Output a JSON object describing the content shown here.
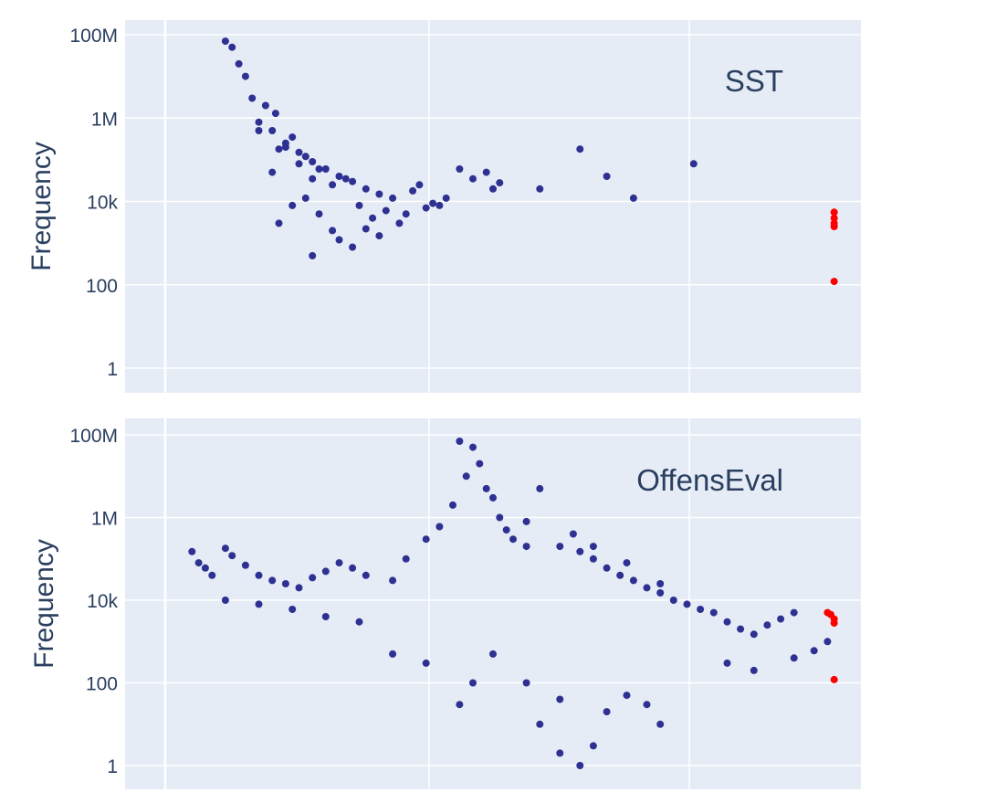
{
  "chart_data": [
    {
      "type": "scatter",
      "title": "",
      "annotation": "SST",
      "xlabel": "",
      "ylabel": "Frequency",
      "y_scale": "log",
      "ylim": [
        0.5,
        150000000
      ],
      "xlim": [
        -0.1,
        1.0
      ],
      "yticks": [
        {
          "value": 1,
          "label": "1"
        },
        {
          "value": 100,
          "label": "100"
        },
        {
          "value": 10000,
          "label": "10k"
        },
        {
          "value": 1000000,
          "label": "1M"
        },
        {
          "value": 100000000,
          "label": "100M"
        }
      ],
      "grid": true,
      "colors": {
        "background": "#e5ecf6",
        "main": "#2e3192",
        "highlight": "#ff0000"
      },
      "series": [
        {
          "color": "#2e3192",
          "values": [
            [
              0.05,
              70000000
            ],
            [
              0.06,
              50000000
            ],
            [
              0.07,
              20000000
            ],
            [
              0.08,
              10000000
            ],
            [
              0.09,
              3000000
            ],
            [
              0.1,
              800000
            ],
            [
              0.12,
              500000
            ],
            [
              0.14,
              250000
            ],
            [
              0.16,
              150000
            ],
            [
              0.18,
              90000
            ],
            [
              0.2,
              60000
            ],
            [
              0.22,
              40000
            ],
            [
              0.24,
              30000
            ],
            [
              0.26,
              20000
            ],
            [
              0.28,
              15000
            ],
            [
              0.3,
              12000
            ],
            [
              0.11,
              2000000
            ],
            [
              0.125,
              1300000
            ],
            [
              0.13,
              180000
            ],
            [
              0.15,
              350000
            ],
            [
              0.17,
              120000
            ],
            [
              0.19,
              60000
            ],
            [
              0.21,
              25000
            ],
            [
              0.23,
              35000
            ],
            [
              0.25,
              8000
            ],
            [
              0.27,
              4000
            ],
            [
              0.29,
              6000
            ],
            [
              0.31,
              3000
            ],
            [
              0.33,
              18000
            ],
            [
              0.35,
              7000
            ],
            [
              0.37,
              8000
            ],
            [
              0.4,
              60000
            ],
            [
              0.42,
              35000
            ],
            [
              0.44,
              50000
            ],
            [
              0.46,
              28000
            ],
            [
              0.38,
              12000
            ],
            [
              0.32,
              5000
            ],
            [
              0.34,
              25000
            ],
            [
              0.36,
              9000
            ],
            [
              0.45,
              20000
            ],
            [
              0.52,
              20000
            ],
            [
              0.58,
              180000
            ],
            [
              0.62,
              40000
            ],
            [
              0.75,
              80000
            ],
            [
              0.66,
              12000
            ],
            [
              0.28,
              1500
            ],
            [
              0.24,
              800
            ],
            [
              0.22,
              1200
            ],
            [
              0.18,
              500
            ],
            [
              0.26,
              2200
            ],
            [
              0.13,
              3000
            ],
            [
              0.15,
              8000
            ],
            [
              0.17,
              12000
            ],
            [
              0.19,
              5000
            ],
            [
              0.21,
              2000
            ],
            [
              0.14,
              200000
            ],
            [
              0.16,
              80000
            ],
            [
              0.18,
              35000
            ],
            [
              0.12,
              50000
            ],
            [
              0.1,
              500000
            ]
          ]
        },
        {
          "color": "#ff0000",
          "values": [
            [
              0.96,
              5500
            ],
            [
              0.96,
              4000
            ],
            [
              0.96,
              3000
            ],
            [
              0.96,
              2500
            ],
            [
              0.96,
              120
            ]
          ]
        }
      ]
    },
    {
      "type": "scatter",
      "title": "",
      "annotation": "OffensEval",
      "xlabel": "",
      "ylabel": "Frequency",
      "y_scale": "log",
      "ylim": [
        0.5,
        150000000
      ],
      "xlim": [
        -0.1,
        1.0
      ],
      "yticks": [
        {
          "value": 1,
          "label": "1"
        },
        {
          "value": 100,
          "label": "100"
        },
        {
          "value": 10000,
          "label": "10k"
        },
        {
          "value": 1000000,
          "label": "1M"
        },
        {
          "value": 100000000,
          "label": "100M"
        }
      ],
      "grid": true,
      "colors": {
        "background": "#e5ecf6",
        "main": "#2e3192",
        "highlight": "#ff0000"
      },
      "series": [
        {
          "color": "#2e3192",
          "values": [
            [
              0.0,
              150000
            ],
            [
              0.01,
              80000
            ],
            [
              0.02,
              60000
            ],
            [
              0.03,
              40000
            ],
            [
              0.05,
              180000
            ],
            [
              0.06,
              120000
            ],
            [
              0.08,
              70000
            ],
            [
              0.1,
              40000
            ],
            [
              0.12,
              30000
            ],
            [
              0.14,
              25000
            ],
            [
              0.16,
              20000
            ],
            [
              0.18,
              35000
            ],
            [
              0.2,
              50000
            ],
            [
              0.22,
              80000
            ],
            [
              0.24,
              60000
            ],
            [
              0.26,
              40000
            ],
            [
              0.3,
              30000
            ],
            [
              0.32,
              100000
            ],
            [
              0.35,
              300000
            ],
            [
              0.37,
              600000
            ],
            [
              0.39,
              2000000
            ],
            [
              0.4,
              70000000
            ],
            [
              0.41,
              10000000
            ],
            [
              0.42,
              50000000
            ],
            [
              0.43,
              20000000
            ],
            [
              0.44,
              5000000
            ],
            [
              0.45,
              3000000
            ],
            [
              0.46,
              1000000
            ],
            [
              0.47,
              500000
            ],
            [
              0.48,
              300000
            ],
            [
              0.5,
              200000
            ],
            [
              0.52,
              5000000
            ],
            [
              0.55,
              200000
            ],
            [
              0.58,
              150000
            ],
            [
              0.6,
              100000
            ],
            [
              0.62,
              60000
            ],
            [
              0.64,
              40000
            ],
            [
              0.66,
              30000
            ],
            [
              0.68,
              20000
            ],
            [
              0.7,
              15000
            ],
            [
              0.72,
              10000
            ],
            [
              0.74,
              8000
            ],
            [
              0.76,
              6000
            ],
            [
              0.78,
              5000
            ],
            [
              0.8,
              3000
            ],
            [
              0.82,
              2000
            ],
            [
              0.84,
              1500
            ],
            [
              0.86,
              2500
            ],
            [
              0.88,
              3500
            ],
            [
              0.9,
              5000
            ],
            [
              0.93,
              600
            ],
            [
              0.95,
              1000
            ],
            [
              0.8,
              300
            ],
            [
              0.84,
              200
            ],
            [
              0.9,
              400
            ],
            [
              0.7,
              25000
            ],
            [
              0.65,
              80000
            ],
            [
              0.6,
              200000
            ],
            [
              0.57,
              400000
            ],
            [
              0.5,
              800000
            ],
            [
              0.45,
              500
            ],
            [
              0.5,
              100
            ],
            [
              0.55,
              40
            ],
            [
              0.52,
              10
            ],
            [
              0.55,
              2
            ],
            [
              0.58,
              1
            ],
            [
              0.6,
              3
            ],
            [
              0.62,
              20
            ],
            [
              0.65,
              50
            ],
            [
              0.68,
              30
            ],
            [
              0.7,
              10
            ],
            [
              0.35,
              300
            ],
            [
              0.4,
              30
            ],
            [
              0.42,
              100
            ],
            [
              0.3,
              500
            ],
            [
              0.25,
              3000
            ],
            [
              0.2,
              4000
            ],
            [
              0.15,
              6000
            ],
            [
              0.1,
              8000
            ],
            [
              0.05,
              10000
            ]
          ]
        },
        {
          "color": "#ff0000",
          "values": [
            [
              0.95,
              5000
            ],
            [
              0.955,
              4500
            ],
            [
              0.96,
              3500
            ],
            [
              0.96,
              2800
            ],
            [
              0.96,
              120
            ]
          ]
        }
      ]
    }
  ]
}
